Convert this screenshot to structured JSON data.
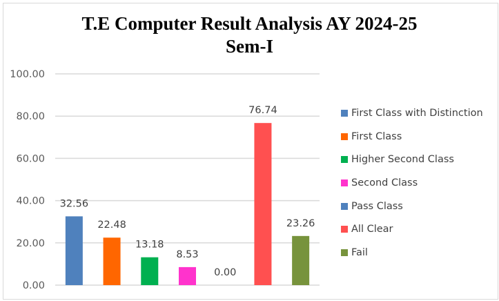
{
  "chart_data": {
    "type": "bar",
    "title": "T.E Computer Result Analysis AY 2024-25",
    "subtitle": "Sem-I",
    "categories": [
      "First Class with Distinction",
      "First Class",
      "Higher Second Class",
      "Second Class",
      "Pass Class",
      "All Clear",
      "Fail"
    ],
    "values": [
      32.56,
      22.48,
      13.18,
      8.53,
      0.0,
      76.74,
      23.26
    ],
    "data_labels": [
      "32.56",
      "22.48",
      "13.18",
      "8.53",
      "0.00",
      "76.74",
      "23.26"
    ],
    "colors": [
      "#4f81bd",
      "#ff6600",
      "#00b050",
      "#ff33cc",
      "#4f81bd",
      "#ff5050",
      "#77933c"
    ],
    "ylim": [
      0,
      100
    ],
    "yticks": [
      "0.00",
      "20.00",
      "40.00",
      "60.00",
      "80.00",
      "100.00"
    ],
    "grid": true,
    "legend": "right",
    "xlabel": "",
    "ylabel": ""
  }
}
